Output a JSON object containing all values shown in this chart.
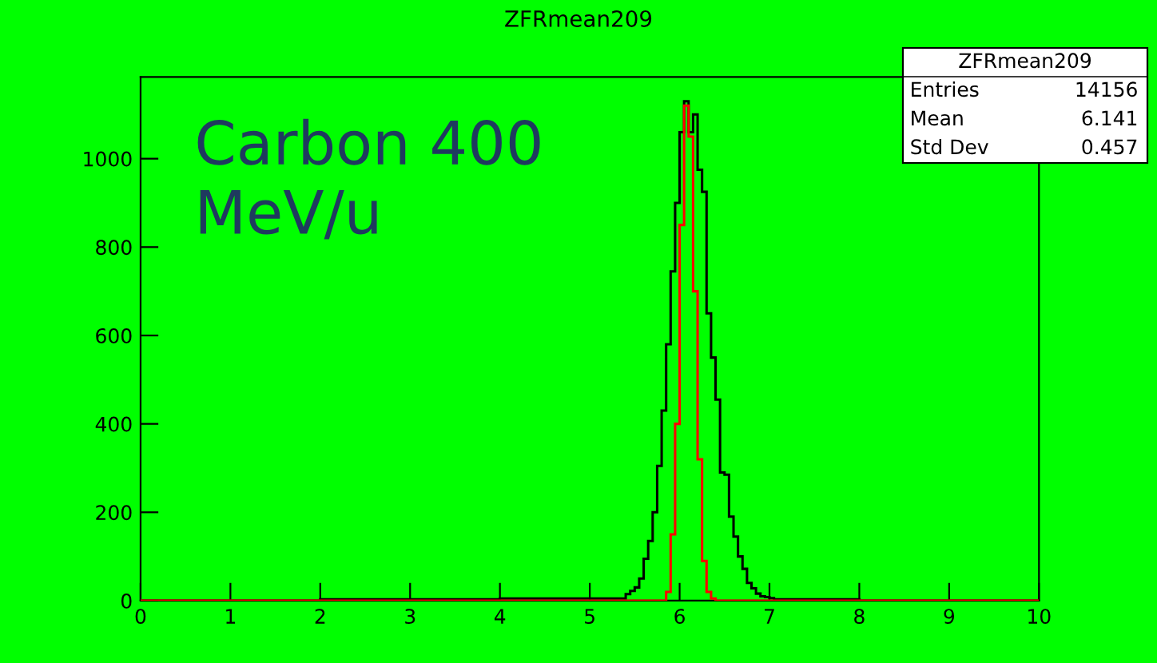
{
  "chart_data": {
    "type": "histogram",
    "title": "ZFRmean209",
    "bins": [
      0,
      0.05,
      0.1,
      0.15,
      0.2,
      0.25,
      0.3,
      0.35,
      0.4,
      0.45,
      0.5,
      0.55,
      0.6,
      0.65,
      0.7,
      0.75,
      0.8,
      0.85,
      0.9,
      0.95,
      1,
      1.05,
      1.1,
      1.15,
      1.2,
      1.25,
      1.3,
      1.35,
      1.4,
      1.45,
      1.5,
      1.55,
      1.6,
      1.65,
      1.7,
      1.75,
      1.8,
      1.85,
      1.9,
      1.95,
      2,
      2.05,
      2.1,
      2.15,
      2.2,
      2.25,
      2.3,
      2.35,
      2.4,
      2.45,
      2.5,
      2.55,
      2.6,
      2.65,
      2.7,
      2.75,
      2.8,
      2.85,
      2.9,
      2.95,
      3,
      3.05,
      3.1,
      3.15,
      3.2,
      3.25,
      3.3,
      3.35,
      3.4,
      3.45,
      3.5,
      3.55,
      3.6,
      3.65,
      3.7,
      3.75,
      3.8,
      3.85,
      3.9,
      3.95,
      4,
      4.05,
      4.1,
      4.15,
      4.2,
      4.25,
      4.3,
      4.35,
      4.4,
      4.45,
      4.5,
      4.55,
      4.6,
      4.65,
      4.7,
      4.75,
      4.8,
      4.85,
      4.9,
      4.95,
      5,
      5.05,
      5.1,
      5.15,
      5.2,
      5.25,
      5.3,
      5.35,
      5.4,
      5.45,
      5.5,
      5.55,
      5.6,
      5.65,
      5.7,
      5.75,
      5.8,
      5.85,
      5.9,
      5.95,
      6,
      6.05,
      6.1,
      6.15,
      6.2,
      6.25,
      6.3,
      6.35,
      6.4,
      6.45,
      6.5,
      6.55,
      6.6,
      6.65,
      6.7,
      6.75,
      6.8,
      6.85,
      6.9,
      6.95,
      7,
      7.05,
      7.1,
      7.15,
      7.2,
      7.25,
      7.3,
      7.35,
      7.4,
      7.45,
      7.5,
      7.55,
      7.6,
      7.65,
      7.7,
      7.75,
      7.8,
      7.85,
      7.9,
      7.95,
      8,
      8.05,
      8.1,
      8.15,
      8.2,
      8.25,
      8.3,
      8.35,
      8.4,
      8.45,
      8.5,
      8.55,
      8.6,
      8.65,
      8.7,
      8.75,
      8.8,
      8.85,
      8.9,
      8.95,
      9,
      9.05,
      9.1,
      9.15,
      9.2,
      9.25,
      9.3,
      9.35,
      9.4,
      9.45,
      9.5,
      9.55,
      9.6,
      9.65,
      9.7,
      9.75,
      9.8,
      9.85,
      9.9,
      9.95,
      10
    ],
    "series": [
      {
        "color": "#000000",
        "values": [
          0,
          0,
          0,
          0,
          0,
          0,
          0,
          0,
          0,
          0,
          0,
          0,
          0,
          0,
          0,
          0,
          0,
          0,
          0,
          0,
          0,
          0,
          0,
          0,
          0,
          0,
          0,
          0,
          0,
          0,
          0,
          0,
          0,
          0,
          0,
          0,
          0,
          0,
          0,
          0,
          3,
          3,
          3,
          3,
          3,
          3,
          3,
          3,
          3,
          3,
          3,
          3,
          3,
          3,
          3,
          3,
          3,
          3,
          3,
          3,
          3,
          3,
          3,
          3,
          3,
          3,
          3,
          3,
          3,
          3,
          3,
          3,
          3,
          3,
          3,
          3,
          3,
          3,
          3,
          3,
          5,
          5,
          5,
          5,
          5,
          5,
          5,
          5,
          5,
          5,
          5,
          5,
          5,
          5,
          5,
          5,
          5,
          5,
          5,
          5,
          5,
          5,
          5,
          5,
          5,
          5,
          5,
          5,
          15,
          22,
          30,
          50,
          95,
          135,
          200,
          305,
          430,
          580,
          745,
          900,
          1060,
          1130,
          1060,
          1100,
          975,
          925,
          650,
          550,
          455,
          290,
          285,
          190,
          145,
          100,
          72,
          40,
          28,
          16,
          10,
          8,
          6,
          3,
          3,
          3,
          3,
          3,
          3,
          3,
          3,
          3,
          3,
          3,
          3,
          3,
          3,
          3,
          3,
          3,
          3,
          3,
          0,
          0,
          0,
          0,
          0,
          0,
          0,
          0,
          0,
          0,
          0,
          0,
          0,
          0,
          0,
          0,
          0,
          0,
          0,
          0,
          0,
          0,
          0,
          0,
          0,
          0,
          0,
          0,
          0,
          0,
          0,
          0,
          0,
          0,
          0,
          0,
          0,
          0,
          0,
          0
        ]
      },
      {
        "color": "#ff0000",
        "values": [
          0,
          0,
          0,
          0,
          0,
          0,
          0,
          0,
          0,
          0,
          0,
          0,
          0,
          0,
          0,
          0,
          0,
          0,
          0,
          0,
          0,
          0,
          0,
          0,
          0,
          0,
          0,
          0,
          0,
          0,
          0,
          0,
          0,
          0,
          0,
          0,
          0,
          0,
          0,
          0,
          0,
          0,
          0,
          0,
          0,
          0,
          0,
          0,
          0,
          0,
          0,
          0,
          0,
          0,
          0,
          0,
          0,
          0,
          0,
          0,
          0,
          0,
          0,
          0,
          0,
          0,
          0,
          0,
          0,
          0,
          0,
          0,
          0,
          0,
          0,
          0,
          0,
          0,
          0,
          0,
          0,
          0,
          0,
          0,
          0,
          0,
          0,
          0,
          0,
          0,
          0,
          0,
          0,
          0,
          0,
          0,
          0,
          0,
          0,
          0,
          0,
          0,
          0,
          0,
          0,
          0,
          0,
          0,
          0,
          0,
          0,
          0,
          0,
          0,
          0,
          0,
          0,
          20,
          150,
          400,
          850,
          1120,
          1050,
          700,
          320,
          90,
          20,
          5,
          0,
          0,
          0,
          0,
          0,
          0,
          0,
          0,
          0,
          0,
          0,
          0,
          0,
          0,
          0,
          0,
          0,
          0,
          0,
          0,
          0,
          0,
          0,
          0,
          0,
          0,
          0,
          0,
          0,
          0,
          0,
          0,
          0,
          0,
          0,
          0,
          0,
          0,
          0,
          0,
          0,
          0,
          0,
          0,
          0,
          0,
          0,
          0,
          0,
          0,
          0,
          0,
          0,
          0,
          0,
          0,
          0,
          0,
          0,
          0,
          0,
          0,
          0,
          0,
          0,
          0,
          0,
          0,
          0,
          0,
          0,
          0
        ]
      }
    ],
    "xlim": [
      0,
      10
    ],
    "xticks": [
      0,
      1,
      2,
      3,
      4,
      5,
      6,
      7,
      8,
      9,
      10
    ],
    "ylim": [
      0,
      1185
    ],
    "yticks": [
      0,
      200,
      400,
      600,
      800,
      1000
    ],
    "annotations": [
      "Carbon 400\nMeV/u",
      "ZFRmean209",
      "Entries",
      "14156",
      "Mean",
      "6.141",
      "Std Dev",
      "0.457"
    ]
  }
}
